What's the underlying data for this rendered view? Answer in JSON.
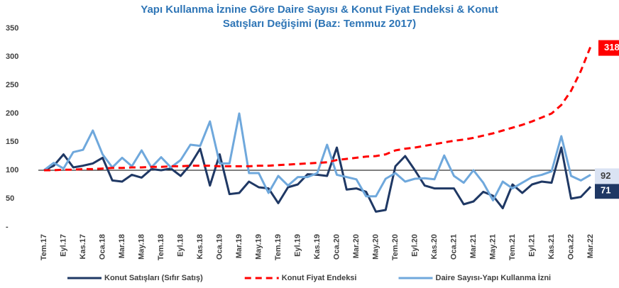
{
  "chart_data": {
    "type": "line",
    "title": [
      "Yapı Kullanma İznine Göre Daire Sayısı & Konut Fiyat Endeksi & Konut",
      "Satışları Değişimi (Baz: Temmuz 2017)"
    ],
    "categories": [
      "Tem.17",
      null,
      "Eyl.17",
      null,
      "Kas.17",
      null,
      "Oca.18",
      null,
      "Mar.18",
      null,
      "May.18",
      null,
      "Tem.18",
      null,
      "Eyl.18",
      null,
      "Kas.18",
      null,
      "Oca.19",
      null,
      "Mar.19",
      null,
      "May.19",
      null,
      "Tem.19",
      null,
      "Eyl.19",
      null,
      "Kas.19",
      null,
      "Oca.20",
      null,
      "Mar.20",
      null,
      "May.20",
      null,
      "Tem.20",
      null,
      "Eyl.20",
      null,
      "Kas.20",
      null,
      "Oca.21",
      null,
      "Mar.21",
      null,
      "May.21",
      null,
      "Tem.21",
      null,
      "Eyl.21",
      null,
      "Kas.21",
      null,
      "Oca.22",
      null,
      "Mar.22"
    ],
    "series": [
      {
        "name": "Konut Satışları (Sıfır Satış)",
        "color": "#1f3864",
        "style": "solid",
        "values": [
          100,
          108,
          128,
          105,
          108,
          112,
          122,
          82,
          80,
          92,
          87,
          102,
          100,
          103,
          90,
          110,
          138,
          73,
          128,
          58,
          60,
          80,
          70,
          68,
          42,
          70,
          75,
          93,
          92,
          90,
          140,
          66,
          68,
          62,
          27,
          30,
          107,
          125,
          100,
          73,
          68,
          68,
          68,
          40,
          45,
          62,
          55,
          33,
          75,
          60,
          75,
          80,
          78,
          140,
          50,
          53,
          71
        ]
      },
      {
        "name": "Konut Fiyat Endeksi",
        "color": "#ff0000",
        "style": "dashed",
        "values": [
          100,
          100,
          101,
          101,
          102,
          102,
          103,
          104,
          104,
          105,
          105,
          106,
          106,
          107,
          107,
          108,
          108,
          108,
          107,
          107,
          107,
          107,
          108,
          108,
          109,
          110,
          111,
          112,
          113,
          114,
          118,
          120,
          122,
          124,
          125,
          128,
          135,
          138,
          140,
          143,
          146,
          149,
          152,
          154,
          157,
          161,
          165,
          170,
          175,
          180,
          186,
          193,
          200,
          215,
          240,
          275,
          318
        ]
      },
      {
        "name": "Daire Sayısı-Yapı Kullanma İzni",
        "color": "#6fa8dc",
        "style": "solid",
        "values": [
          100,
          113,
          103,
          132,
          136,
          170,
          128,
          105,
          122,
          107,
          135,
          105,
          123,
          105,
          118,
          145,
          143,
          186,
          112,
          112,
          200,
          95,
          95,
          60,
          90,
          73,
          88,
          88,
          95,
          145,
          92,
          88,
          84,
          54,
          54,
          85,
          95,
          80,
          85,
          86,
          84,
          126,
          90,
          78,
          100,
          78,
          47,
          80,
          68,
          78,
          88,
          92,
          98,
          160,
          90,
          82,
          92
        ]
      }
    ],
    "ylim": [
      0,
      350
    ],
    "yticks": [
      {
        "value": 0,
        "label": "-"
      },
      50,
      100,
      150,
      200,
      250,
      300,
      350
    ],
    "reference_line": 100,
    "grid": false,
    "legend": "bottom"
  }
}
